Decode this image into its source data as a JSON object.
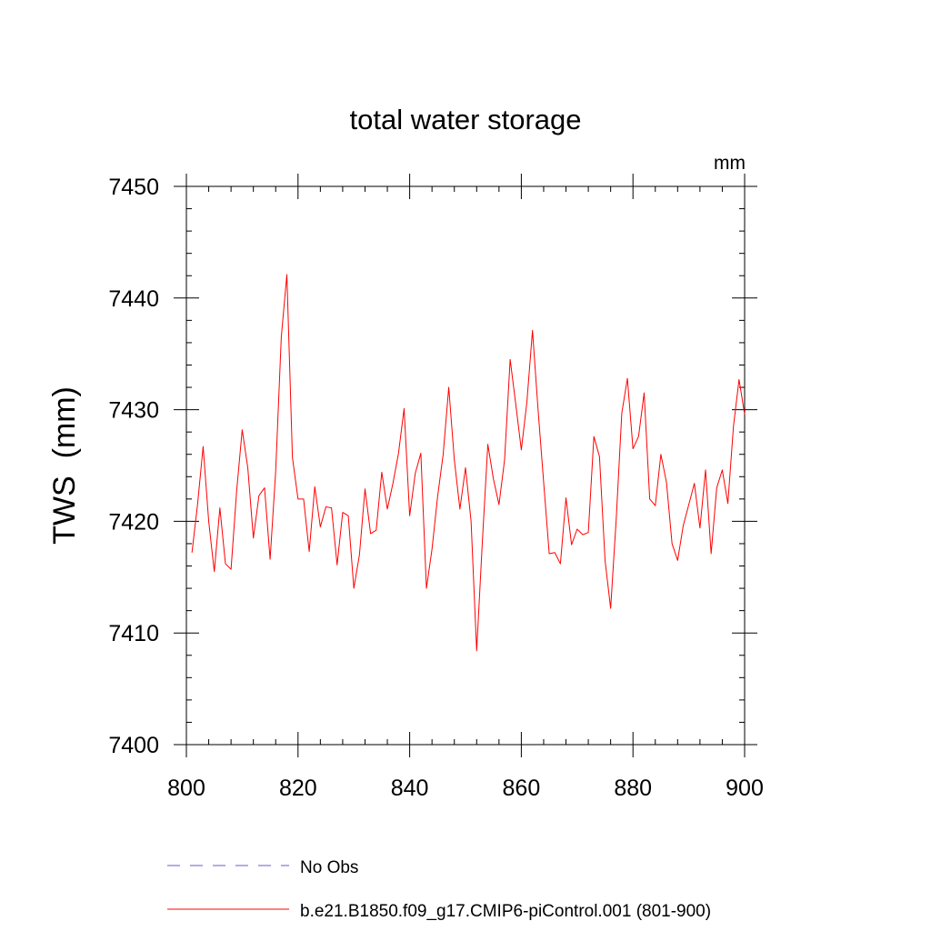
{
  "chart_data": {
    "type": "line",
    "title": "total water storage",
    "units_label": "mm",
    "ylabel": "TWS  (mm)",
    "xlabel": "",
    "xlim": [
      800,
      900
    ],
    "ylim": [
      7400,
      7450
    ],
    "x_ticks": [
      800,
      820,
      840,
      860,
      880,
      900
    ],
    "y_ticks": [
      7400,
      7410,
      7420,
      7430,
      7440,
      7450
    ],
    "x_minor_step": 4,
    "y_minor_step": 2,
    "grid": false,
    "legend_position": "bottom",
    "series": [
      {
        "name": "No Obs",
        "color": "#6a5acd",
        "style": "dashed",
        "x": [],
        "values": []
      },
      {
        "name": "b.e21.B1850.f09_g17.CMIP6-piControl.001 (801-900)",
        "color": "#ff0000",
        "style": "solid",
        "x_start": 801,
        "x_step": 1,
        "values": [
          7417.2,
          7421.5,
          7426.7,
          7420.0,
          7415.5,
          7421.2,
          7416.2,
          7415.7,
          7422.7,
          7428.2,
          7424.8,
          7418.5,
          7422.3,
          7423.0,
          7416.6,
          7424.5,
          7436.5,
          7442.1,
          7425.7,
          7422.0,
          7422.0,
          7417.3,
          7423.1,
          7419.5,
          7421.3,
          7421.2,
          7416.1,
          7420.8,
          7420.5,
          7414.0,
          7417.0,
          7422.9,
          7418.9,
          7419.2,
          7424.4,
          7421.1,
          7423.4,
          7426.1,
          7430.1,
          7420.5,
          7424.3,
          7426.1,
          7414.0,
          7417.5,
          7422.2,
          7426.0,
          7432.0,
          7425.5,
          7421.1,
          7424.8,
          7420.0,
          7408.4,
          7418.0,
          7426.9,
          7423.8,
          7421.5,
          7425.5,
          7434.5,
          7430.5,
          7426.4,
          7430.7,
          7437.1,
          7430.0,
          7423.5,
          7417.1,
          7417.2,
          7416.2,
          7422.1,
          7417.9,
          7419.3,
          7418.8,
          7419.0,
          7427.6,
          7425.8,
          7416.5,
          7412.2,
          7420.2,
          7429.7,
          7432.8,
          7426.5,
          7427.6,
          7431.5,
          7422.0,
          7421.4,
          7426.0,
          7423.5,
          7418.0,
          7416.5,
          7419.6,
          7421.5,
          7423.4,
          7419.4,
          7424.6,
          7417.1,
          7423.0,
          7424.6,
          7421.6,
          7428.5,
          7432.7,
          7429.6
        ]
      }
    ]
  }
}
